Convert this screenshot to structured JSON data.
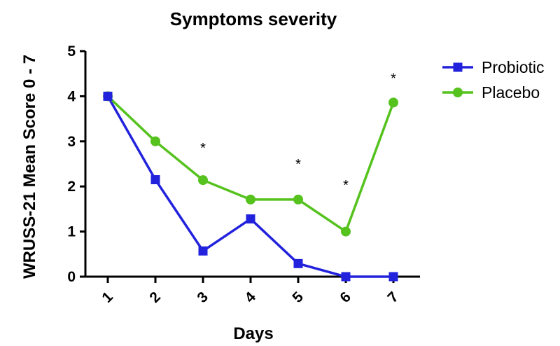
{
  "chart_data": {
    "type": "line",
    "title": "Symptoms severity",
    "xlabel": "Days",
    "ylabel": "WRUSS-21 Mean Score 0 - 7",
    "x": [
      "1",
      "2",
      "3",
      "4",
      "5",
      "6",
      "7"
    ],
    "yticks": [
      "0",
      "1",
      "2",
      "3",
      "4",
      "5"
    ],
    "ylim": [
      0,
      5
    ],
    "grid": false,
    "legend_position": "top-right",
    "series": [
      {
        "name": "Probiotic",
        "color": "#2222dd",
        "marker": "square",
        "values": [
          4.0,
          2.15,
          0.57,
          1.28,
          0.29,
          0.0,
          0.0
        ]
      },
      {
        "name": "Placebo",
        "color": "#55c21e",
        "marker": "circle",
        "values": [
          4.0,
          3.0,
          2.14,
          1.71,
          1.71,
          1.0,
          3.86
        ]
      }
    ],
    "annotations": [
      {
        "text": "*",
        "x": "3",
        "y": 2.9
      },
      {
        "text": "*",
        "x": "5",
        "y": 2.55
      },
      {
        "text": "*",
        "x": "6",
        "y": 2.08
      },
      {
        "text": "*",
        "x": "7",
        "y": 4.45
      }
    ]
  }
}
